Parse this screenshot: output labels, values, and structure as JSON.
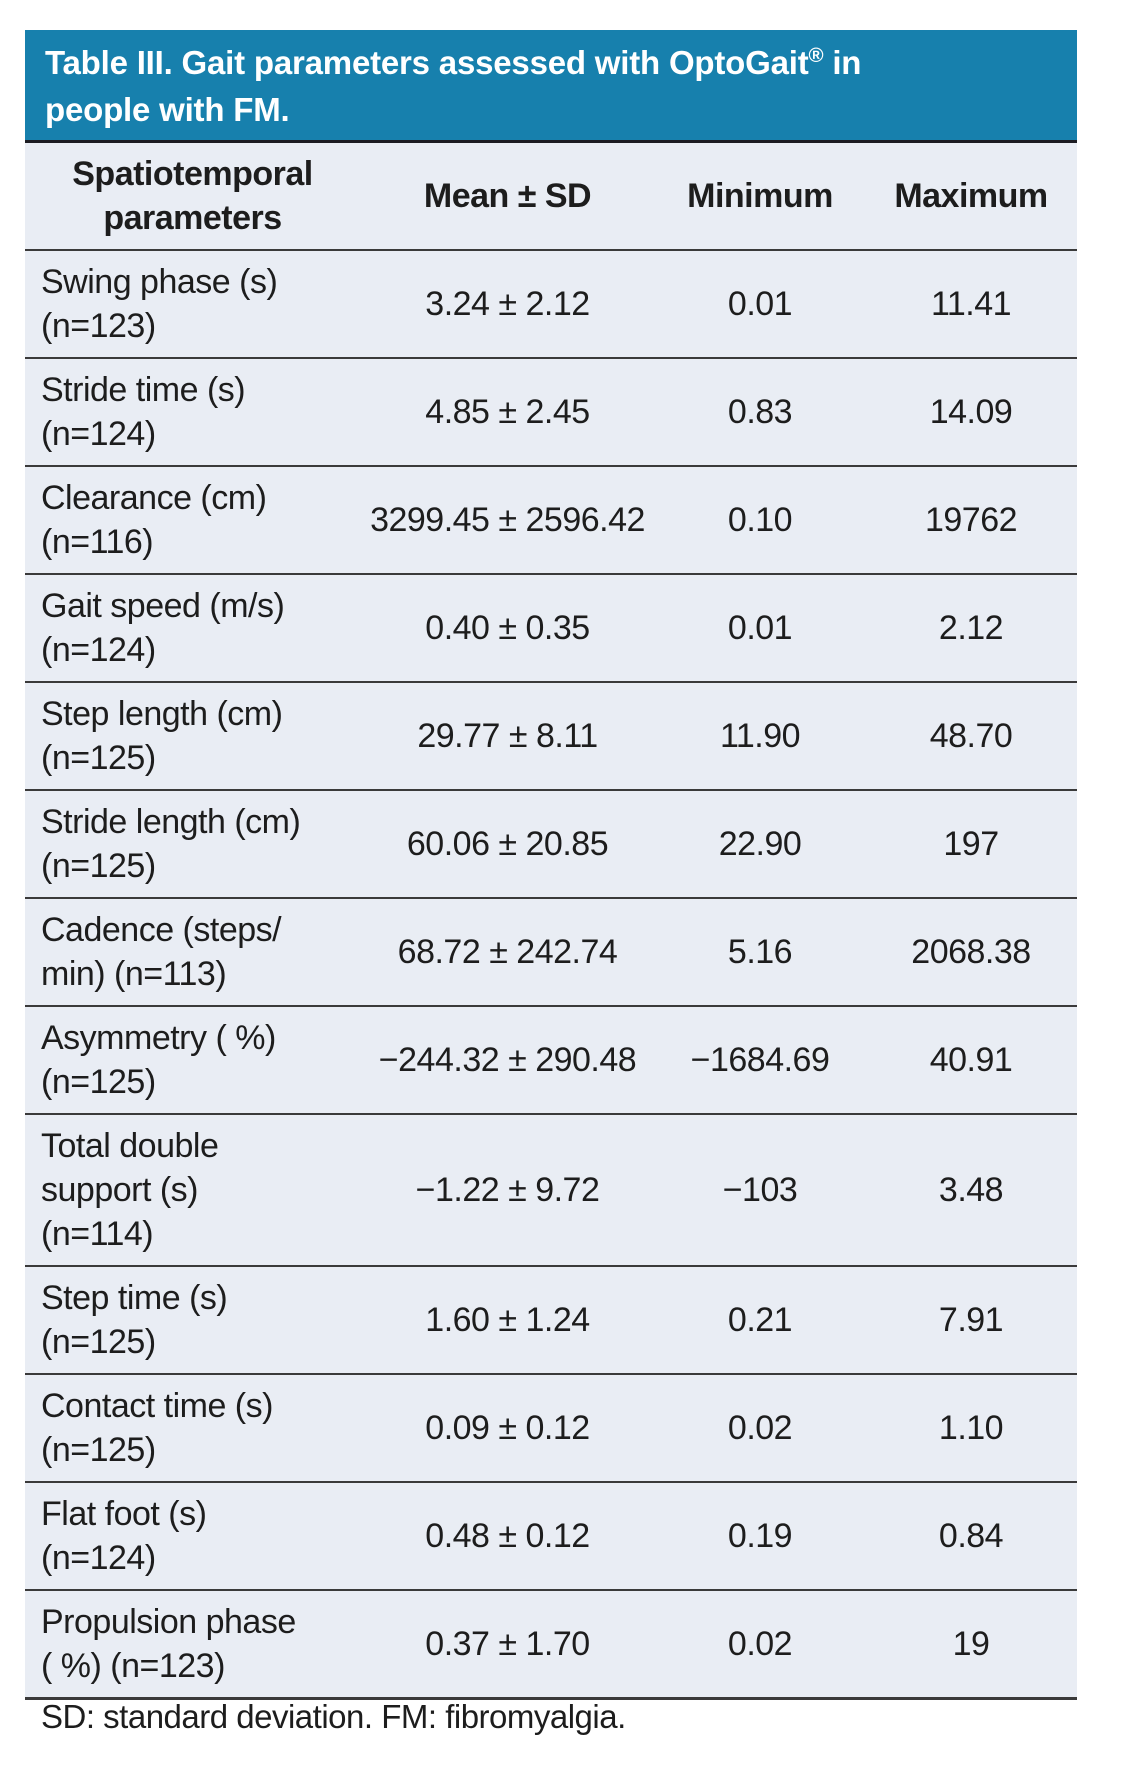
{
  "colors": {
    "title_bg": "#1780ad",
    "title_text": "#ffffff",
    "table_bg": "#e9edf4",
    "row_border": "#3a3a3a",
    "body_text": "#1d1d1d",
    "page_bg": "#ffffff"
  },
  "header": {
    "title_prefix": "Table III. Gait parameters assessed with OptoGait",
    "registered_mark": "®",
    "title_suffix": " in\npeople with FM."
  },
  "table": {
    "columns": [
      "Spatiotemporal\nparameters",
      "Mean ± SD",
      "Minimum",
      "Maximum"
    ],
    "rows": [
      {
        "param": "Swing phase (s)\n(n=123)",
        "mean_sd": "3.24 ± 2.12",
        "min": "0.01",
        "max": "11.41"
      },
      {
        "param": "Stride time (s)\n(n=124)",
        "mean_sd": "4.85 ± 2.45",
        "min": "0.83",
        "max": "14.09"
      },
      {
        "param": "Clearance (cm)\n(n=116)",
        "mean_sd": "3299.45 ± 2596.42",
        "min": "0.10",
        "max": "19762"
      },
      {
        "param": "Gait speed (m/s)\n(n=124)",
        "mean_sd": "0.40 ± 0.35",
        "min": "0.01",
        "max": "2.12"
      },
      {
        "param": "Step length (cm)\n(n=125)",
        "mean_sd": "29.77 ± 8.11",
        "min": "11.90",
        "max": "48.70"
      },
      {
        "param": "Stride length (cm)\n(n=125)",
        "mean_sd": "60.06 ± 20.85",
        "min": "22.90",
        "max": "197"
      },
      {
        "param": "Cadence (steps/\nmin) (n=113)",
        "mean_sd": "68.72 ± 242.74",
        "min": "5.16",
        "max": "2068.38"
      },
      {
        "param": "Asymmetry ( %)\n(n=125)",
        "mean_sd": "−244.32 ± 290.48",
        "min": "−1684.69",
        "max": "40.91"
      },
      {
        "param": "Total double\nsupport (s)\n(n=114)",
        "mean_sd": "−1.22 ± 9.72",
        "min": "−103",
        "max": "3.48"
      },
      {
        "param": "Step time (s)\n(n=125)",
        "mean_sd": "1.60 ± 1.24",
        "min": "0.21",
        "max": "7.91"
      },
      {
        "param": "Contact time (s)\n(n=125)",
        "mean_sd": "0.09 ± 0.12",
        "min": "0.02",
        "max": "1.10"
      },
      {
        "param": "Flat foot (s)\n(n=124)",
        "mean_sd": "0.48 ± 0.12",
        "min": "0.19",
        "max": "0.84"
      },
      {
        "param": "Propulsion phase\n( %) (n=123)",
        "mean_sd": "0.37 ± 1.70",
        "min": "0.02",
        "max": "19"
      }
    ]
  },
  "footnote": "SD: standard deviation. FM: fibromyalgia."
}
